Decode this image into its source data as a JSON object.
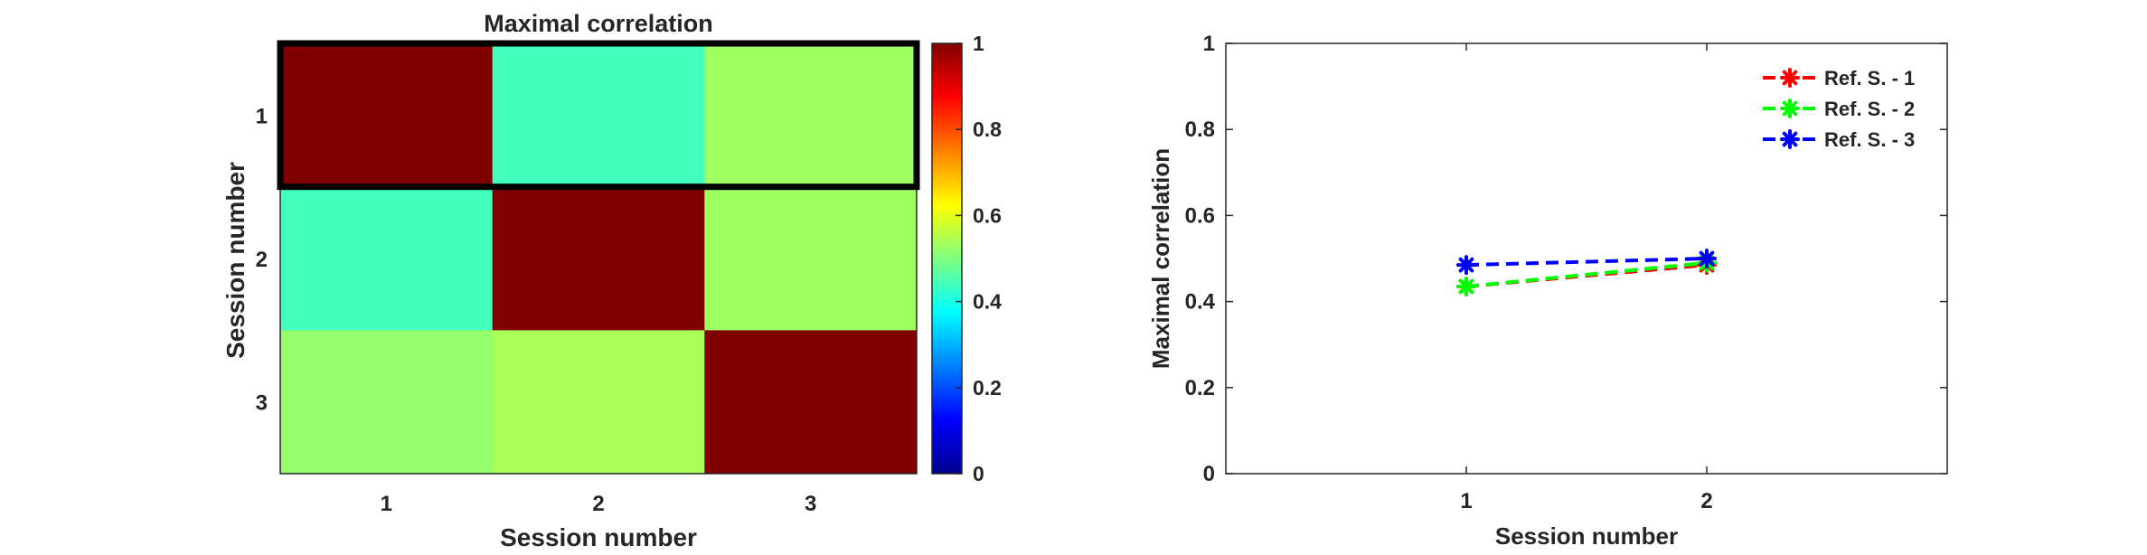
{
  "chart_data": [
    {
      "type": "heatmap",
      "title": "Maximal correlation",
      "xlabel": "Session number",
      "ylabel": "Session number",
      "x_categories": [
        "1",
        "2",
        "3"
      ],
      "y_categories": [
        "1",
        "2",
        "3"
      ],
      "values": [
        [
          1.0,
          0.44,
          0.53
        ],
        [
          0.44,
          1.0,
          0.53
        ],
        [
          0.52,
          0.54,
          1.0
        ]
      ],
      "highlight_row": 1,
      "colorbar": {
        "colormap": "jet",
        "range": [
          0,
          1
        ],
        "ticks": [
          "0",
          "0.2",
          "0.4",
          "0.6",
          "0.8",
          "1"
        ]
      }
    },
    {
      "type": "line",
      "title": "",
      "xlabel": "Session number",
      "ylabel": "Maximal correlation",
      "xlim": [
        0,
        3
      ],
      "ylim": [
        0,
        1
      ],
      "x_ticks": [
        "1",
        "2"
      ],
      "y_ticks": [
        "0",
        "0.2",
        "0.4",
        "0.6",
        "0.8",
        "1"
      ],
      "legend_position": "top-right",
      "series": [
        {
          "name": "Ref. S. - 1",
          "color": "#ff0000",
          "x": [
            1,
            2
          ],
          "y": [
            0.435,
            0.485
          ]
        },
        {
          "name": "Ref. S. - 2",
          "color": "#00ff00",
          "x": [
            1,
            2
          ],
          "y": [
            0.435,
            0.49
          ]
        },
        {
          "name": "Ref. S. - 3",
          "color": "#0000ff",
          "x": [
            1,
            2
          ],
          "y": [
            0.485,
            0.5
          ]
        }
      ]
    }
  ]
}
